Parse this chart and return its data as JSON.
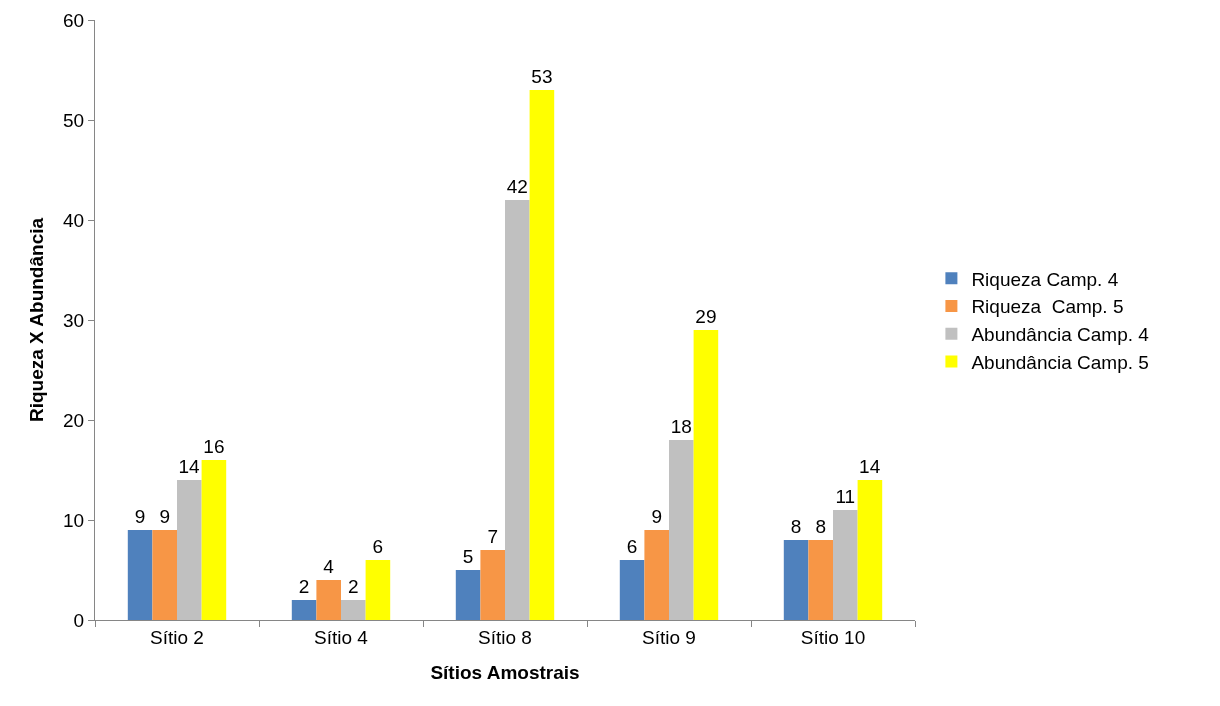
{
  "chart_data": {
    "type": "bar",
    "xlabel": "Sítios Amostrais",
    "ylabel": "Riqueza X Abundância",
    "categories": [
      "Sítio 2",
      "Sítio 4",
      "Sítio 8",
      "Sítio 9",
      "Sítio 10"
    ],
    "series": [
      {
        "name": "Riqueza Camp. 4",
        "color": "#4f81bd",
        "values": [
          9,
          2,
          5,
          6,
          8
        ]
      },
      {
        "name": "Riqueza  Camp. 5",
        "color": "#f79646",
        "values": [
          9,
          4,
          7,
          9,
          8
        ]
      },
      {
        "name": "Abundância Camp. 4",
        "color": "#c0c0c0",
        "values": [
          14,
          2,
          42,
          18,
          11
        ]
      },
      {
        "name": "Abundância Camp. 5",
        "color": "#ffff00",
        "values": [
          16,
          6,
          53,
          29,
          14
        ]
      }
    ],
    "ylim": [
      0,
      60
    ],
    "yticks": [
      0,
      10,
      20,
      30,
      40,
      50,
      60
    ],
    "grid": false,
    "legend": "right",
    "data_labels": true
  }
}
